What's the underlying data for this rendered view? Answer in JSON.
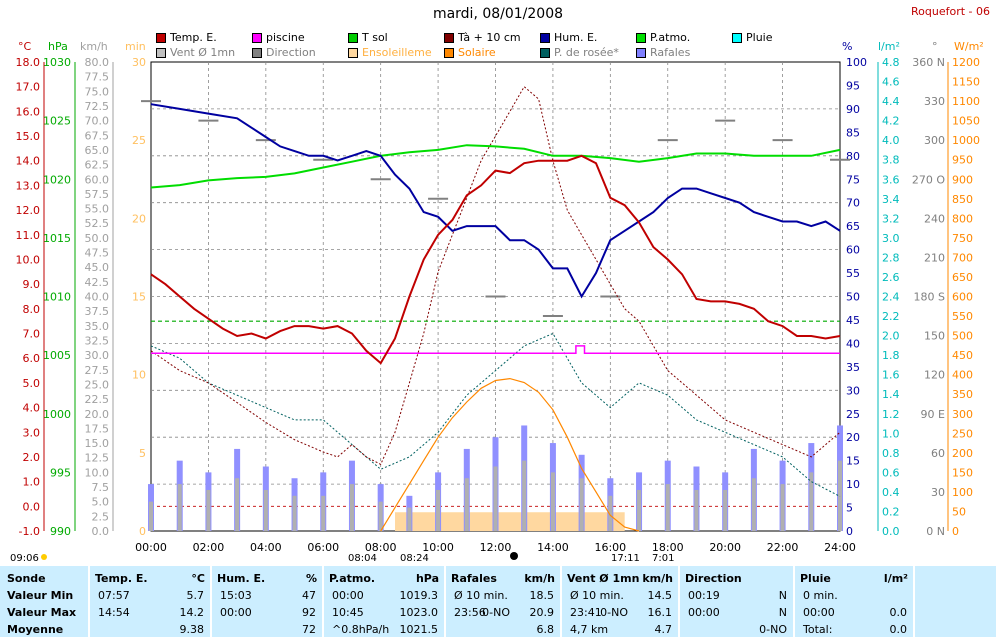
{
  "title": "mardi, 08/01/2008",
  "station": "Roquefort - 06",
  "legend": [
    {
      "label": "Temp. E.",
      "color": "#c00000",
      "col": 0,
      "row": 0
    },
    {
      "label": "piscine",
      "color": "#ff00ff",
      "col": 1,
      "row": 0
    },
    {
      "label": "T sol",
      "color": "#00cc00",
      "col": 2,
      "row": 0
    },
    {
      "label": "Tà + 10 cm",
      "color": "#800000",
      "col": 3,
      "row": 0
    },
    {
      "label": "Hum. E.",
      "color": "#0000a0",
      "col": 4,
      "row": 0
    },
    {
      "label": "P.atmo.",
      "color": "#00e000",
      "col": 5,
      "row": 0
    },
    {
      "label": "Pluie",
      "color": "#00ffff",
      "col": 6,
      "row": 0
    },
    {
      "label": "Vent Ø 1mn",
      "color": "#c0c0c0",
      "col": 0,
      "row": 1
    },
    {
      "label": "Direction",
      "color": "#808080",
      "col": 1,
      "row": 1
    },
    {
      "label": "Ensoleilleme",
      "color": "#ffd8a0",
      "col": 2,
      "row": 1
    },
    {
      "label": "Solaire",
      "color": "#ff8800",
      "col": 3,
      "row": 1
    },
    {
      "label": "P. de rosée*",
      "color": "#006060",
      "col": 4,
      "row": 1
    },
    {
      "label": "Rafales",
      "color": "#8080ff",
      "col": 5,
      "row": 1
    }
  ],
  "axes": {
    "temp": {
      "unit": "°C",
      "color": "#c00000",
      "min": -1.0,
      "max": 18.0,
      "step": 1.0
    },
    "press": {
      "unit": "hPa",
      "color": "#00aa00",
      "min": 990,
      "max": 1030,
      "step": 5
    },
    "wind": {
      "unit": "km/h",
      "color": "#a0a0a0",
      "min": 0,
      "max": 80,
      "step": 2.5
    },
    "sun": {
      "unit": "min",
      "color": "#ffc060",
      "min": 0,
      "max": 30,
      "step": 5
    },
    "hum": {
      "unit": "%",
      "color": "#0000a0",
      "min": 0,
      "max": 100,
      "step": 5
    },
    "rain": {
      "unit": "l/m²",
      "color": "#00bbbb",
      "min": 0,
      "max": 4.8,
      "step": 0.2
    },
    "dir": {
      "unit": "°",
      "color": "#808080",
      "ticks": [
        "0 N",
        "30",
        "60",
        "90 E",
        "120",
        "150",
        "180 S",
        "210",
        "240",
        "270 O",
        "300",
        "330",
        "360 N"
      ]
    },
    "solar": {
      "unit": "W/m²",
      "color": "#ff8800",
      "min": 0,
      "max": 1200,
      "step": 50
    }
  },
  "x_ticks": [
    "00:00",
    "02:00",
    "04:00",
    "06:00",
    "08:00",
    "10:00",
    "12:00",
    "14:00",
    "16:00",
    "18:00",
    "20:00",
    "22:00",
    "24:00"
  ],
  "events": {
    "moonrise": "09:06",
    "sunrise": "08:04",
    "sun_transit": "08:24",
    "sunset": "17:11",
    "moonset": "7:01"
  },
  "chart_data": {
    "type": "line",
    "x_unit": "hours",
    "series": [
      {
        "name": "Temp. E.",
        "unit": "°C",
        "x": [
          0,
          0.5,
          1,
          1.5,
          2,
          2.5,
          3,
          3.5,
          4,
          4.5,
          5,
          5.5,
          6,
          6.5,
          7,
          7.5,
          8,
          8.5,
          9,
          9.5,
          10,
          10.5,
          11,
          11.5,
          12,
          12.5,
          13,
          13.5,
          14,
          14.5,
          15,
          15.5,
          16,
          16.5,
          17,
          17.5,
          18,
          18.5,
          19,
          19.5,
          20,
          20.5,
          21,
          21.5,
          22,
          22.5,
          23,
          23.5,
          24
        ],
        "y": [
          9.4,
          9.0,
          8.5,
          8.0,
          7.6,
          7.2,
          6.9,
          7.0,
          6.8,
          7.1,
          7.3,
          7.3,
          7.2,
          7.3,
          7.0,
          6.3,
          5.8,
          6.8,
          8.5,
          10.0,
          11.0,
          11.6,
          12.6,
          13.0,
          13.6,
          13.5,
          13.9,
          14.0,
          14.0,
          14.0,
          14.2,
          13.9,
          12.5,
          12.2,
          11.5,
          10.5,
          10.0,
          9.4,
          8.4,
          8.3,
          8.3,
          8.2,
          8.0,
          7.5,
          7.3,
          6.9,
          6.9,
          6.8,
          6.9
        ]
      },
      {
        "name": "Hum. E.",
        "unit": "%",
        "x": [
          0,
          1,
          2,
          3,
          3.5,
          4,
          4.5,
          5,
          5.5,
          6,
          6.5,
          7,
          7.5,
          8,
          8.5,
          9,
          9.5,
          10,
          10.5,
          11,
          11.5,
          12,
          12.5,
          13,
          13.5,
          14,
          14.5,
          15,
          15.5,
          16,
          16.5,
          17,
          17.5,
          18,
          18.5,
          19,
          19.5,
          20,
          20.5,
          21,
          21.5,
          22,
          22.5,
          23,
          23.5,
          24
        ],
        "y": [
          91,
          90,
          89,
          88,
          86,
          84,
          82,
          81,
          80,
          80,
          79,
          80,
          81,
          80,
          76,
          73,
          68,
          67,
          64,
          65,
          65,
          65,
          62,
          62,
          60,
          56,
          56,
          50,
          55,
          62,
          64,
          66,
          68,
          71,
          73,
          73,
          72,
          71,
          70,
          68,
          67,
          66,
          66,
          65,
          66,
          64
        ]
      },
      {
        "name": "P.atmo.",
        "unit": "hPa",
        "x": [
          0,
          1,
          2,
          3,
          4,
          5,
          6,
          7,
          8,
          9,
          10,
          11,
          12,
          13,
          14,
          15,
          16,
          17,
          18,
          19,
          20,
          21,
          22,
          23,
          24
        ],
        "y": [
          1019.3,
          1019.5,
          1019.9,
          1020.1,
          1020.2,
          1020.5,
          1021.0,
          1021.5,
          1022.0,
          1022.3,
          1022.5,
          1022.9,
          1022.8,
          1022.6,
          1022.0,
          1022.0,
          1021.8,
          1021.5,
          1021.8,
          1022.2,
          1022.2,
          1022.0,
          1022.0,
          1022.0,
          1022.5
        ]
      },
      {
        "name": "T sol",
        "unit": "°C",
        "x": [
          0,
          24
        ],
        "y": [
          7.5,
          7.5
        ]
      },
      {
        "name": "piscine",
        "unit": "°C",
        "x": [
          0,
          14.8,
          14.8,
          15.1,
          15.1,
          24
        ],
        "y": [
          6.2,
          6.2,
          6.5,
          6.5,
          6.2,
          6.2
        ]
      },
      {
        "name": "Tà + 10 cm",
        "unit": "°C",
        "x": [
          0,
          1,
          2,
          3,
          4,
          5,
          6,
          6.5,
          7,
          7.5,
          8,
          8.5,
          9,
          9.5,
          10,
          10.5,
          11,
          11.5,
          12,
          12.5,
          13,
          13.5,
          14,
          14.5,
          15,
          15.5,
          16,
          16.5,
          17,
          17.5,
          18,
          19,
          20,
          21,
          22,
          23,
          24
        ],
        "y": [
          6.3,
          5.5,
          5.0,
          4.2,
          3.4,
          2.7,
          2.2,
          2.0,
          2.5,
          2.0,
          1.7,
          3.0,
          5.0,
          7.0,
          9.5,
          11.0,
          12.5,
          14.0,
          15.0,
          16.0,
          17.0,
          16.5,
          14.0,
          12.0,
          11.0,
          10.0,
          9.0,
          8.0,
          7.5,
          6.5,
          5.5,
          4.5,
          3.5,
          3.0,
          2.5,
          2.0,
          3.0
        ]
      },
      {
        "name": "P. de rosée*",
        "unit": "°C",
        "x": [
          0,
          1,
          2,
          3,
          4,
          5,
          6,
          7,
          8,
          9,
          10,
          11,
          12,
          13,
          14,
          15,
          16,
          17,
          18,
          19,
          20,
          21,
          22,
          23,
          24
        ],
        "y": [
          6.5,
          6.0,
          5.0,
          4.5,
          4.0,
          3.5,
          3.5,
          2.5,
          1.5,
          2.0,
          3.0,
          4.5,
          5.5,
          6.5,
          7.0,
          5.0,
          4.0,
          5.0,
          4.5,
          3.5,
          3.0,
          2.5,
          2.0,
          1.0,
          0.4
        ]
      },
      {
        "name": "Solaire",
        "unit": "W/m²",
        "x": [
          8,
          8.5,
          9,
          9.5,
          10,
          10.5,
          11,
          11.5,
          12,
          12.5,
          13,
          13.5,
          14,
          14.5,
          15,
          15.5,
          16,
          16.5,
          17
        ],
        "y": [
          0,
          60,
          120,
          180,
          240,
          290,
          330,
          365,
          385,
          390,
          380,
          355,
          310,
          240,
          160,
          100,
          40,
          10,
          0
        ]
      },
      {
        "name": "Rafales",
        "unit": "km/h",
        "x": [
          0,
          1,
          2,
          3,
          4,
          5,
          6,
          7,
          8,
          9,
          10,
          11,
          12,
          13,
          14,
          15,
          16,
          17,
          18,
          19,
          20,
          21,
          22,
          23,
          24
        ],
        "y": [
          8,
          12,
          10,
          14,
          11,
          9,
          10,
          12,
          8,
          6,
          10,
          14,
          16,
          18,
          15,
          13,
          9,
          10,
          12,
          11,
          10,
          14,
          12,
          15,
          18
        ]
      },
      {
        "name": "Vent Ø 1mn",
        "unit": "km/h",
        "x": [
          0,
          1,
          2,
          3,
          4,
          5,
          6,
          7,
          8,
          9,
          10,
          11,
          12,
          13,
          14,
          15,
          16,
          17,
          18,
          19,
          20,
          21,
          22,
          23,
          24
        ],
        "y": [
          5,
          8,
          7,
          9,
          7,
          6,
          6,
          8,
          5,
          4,
          7,
          9,
          11,
          12,
          10,
          9,
          6,
          7,
          8,
          7,
          7,
          9,
          8,
          10,
          12
        ]
      },
      {
        "name": "Direction",
        "unit": "°",
        "x": [
          0,
          2,
          4,
          6,
          8,
          10,
          12,
          14,
          16,
          18,
          20,
          22,
          24
        ],
        "y": [
          330,
          315,
          300,
          285,
          270,
          255,
          180,
          165,
          180,
          300,
          315,
          300,
          285
        ]
      },
      {
        "name": "Ensoleilleme",
        "unit": "min",
        "x": [
          8.5,
          16.5
        ],
        "y": [
          1,
          1
        ]
      }
    ],
    "xlim": [
      0,
      24
    ]
  },
  "table": {
    "columns": [
      {
        "header": "Sonde",
        "unit": ""
      },
      {
        "header": "Temp. E.",
        "unit": "°C"
      },
      {
        "header": "Hum. E.",
        "unit": "%"
      },
      {
        "header": "P.atmo.",
        "unit": "hPa"
      },
      {
        "header": "Rafales",
        "unit": "km/h"
      },
      {
        "header": "Vent Ø 1mn",
        "unit": "km/h"
      },
      {
        "header": "Direction",
        "unit": ""
      },
      {
        "header": "Pluie",
        "unit": "l/m²"
      }
    ],
    "rows": [
      {
        "label": "Valeur Min",
        "temp": [
          "07:57",
          "5.7"
        ],
        "hum": [
          "15:03",
          "47"
        ],
        "press": [
          "00:00",
          "1019.3"
        ],
        "raf": [
          "Ø 10 min.",
          "",
          "18.5"
        ],
        "vent": [
          "Ø 10 min.",
          "",
          "14.5"
        ],
        "dir": [
          "00:19",
          "N"
        ],
        "pluie": [
          "0 min.",
          ""
        ]
      },
      {
        "label": "Valeur Max",
        "temp": [
          "14:54",
          "14.2"
        ],
        "hum": [
          "00:00",
          "92"
        ],
        "press": [
          "10:45",
          "1023.0"
        ],
        "raf": [
          "23:56",
          "0-NO",
          "20.9"
        ],
        "vent": [
          "23:41",
          "0-NO",
          "16.1"
        ],
        "dir": [
          "00:00",
          "N"
        ],
        "pluie": [
          "00:00",
          "0.0"
        ]
      },
      {
        "label": "Moyenne",
        "temp": [
          "",
          "9.38"
        ],
        "hum": [
          "",
          "72"
        ],
        "press": [
          "^0.8hPa/h",
          "1021.5"
        ],
        "raf": [
          "",
          "",
          "6.8"
        ],
        "vent": [
          "4,7 km",
          "",
          "4.7"
        ],
        "dir": [
          "",
          "0-NO"
        ],
        "pluie": [
          "Total:",
          "0.0"
        ]
      }
    ]
  }
}
